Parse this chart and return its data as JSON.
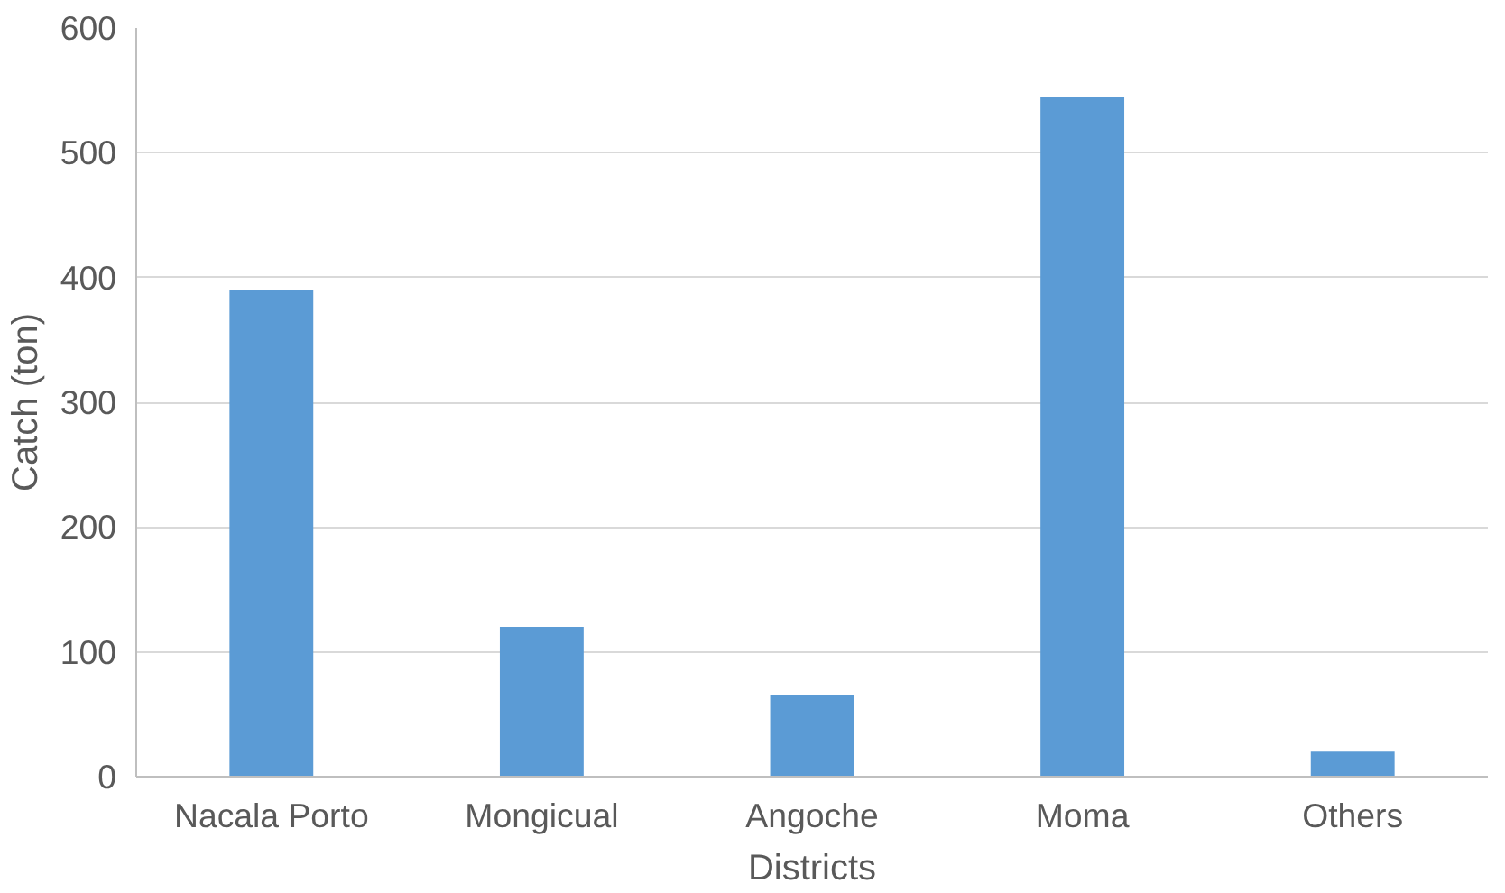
{
  "chart_data": {
    "type": "bar",
    "xlabel": "Districts",
    "ylabel": "Catch (ton)",
    "categories": [
      "Nacala Porto",
      "Mongicual",
      "Angoche",
      "Moma",
      "Others"
    ],
    "values": [
      390,
      120,
      65,
      545,
      20
    ],
    "color": "#5b9bd5",
    "ylim": [
      0,
      600
    ],
    "yticks": [
      0,
      100,
      200,
      300,
      400,
      500,
      600
    ],
    "grid": "y"
  }
}
